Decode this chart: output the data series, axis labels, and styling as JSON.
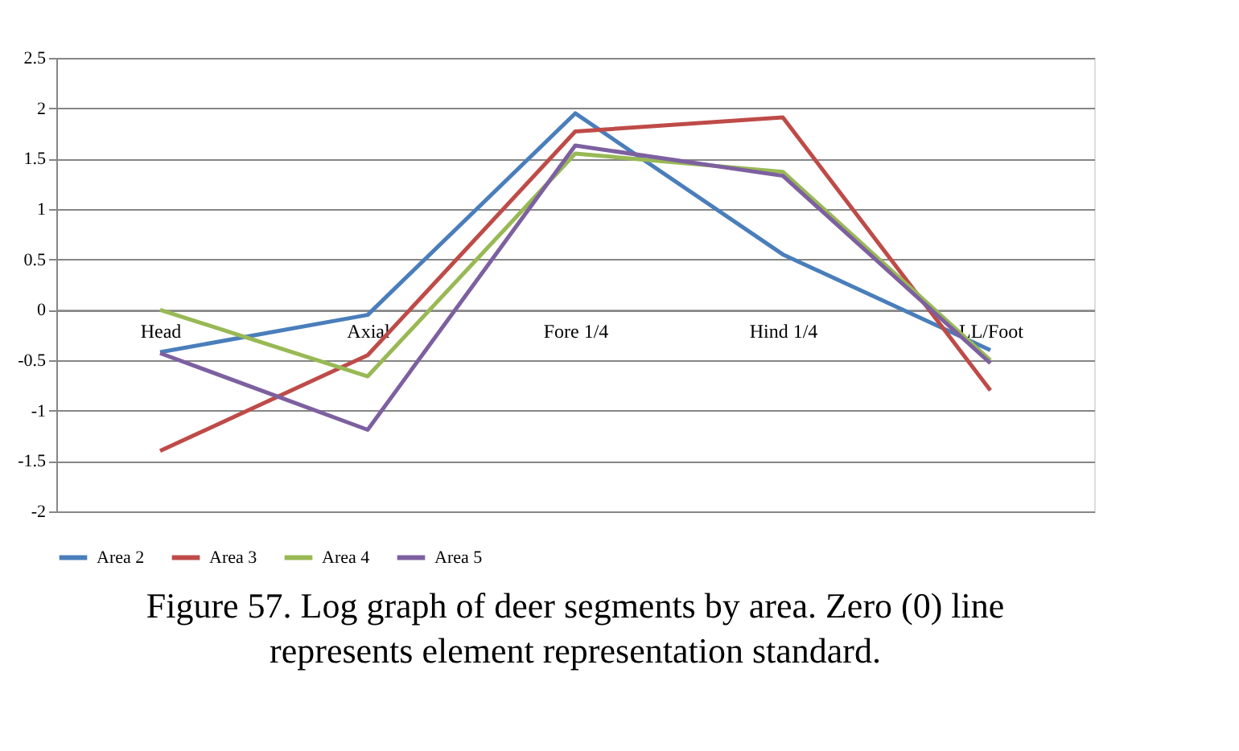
{
  "chart_data": {
    "type": "line",
    "categories": [
      "Head",
      "Axial",
      "Fore 1/4",
      "Hind 1/4",
      "LL/Foot"
    ],
    "series": [
      {
        "name": "Area 2",
        "color": "#4a7ebb",
        "values": [
          -0.42,
          -0.05,
          1.95,
          0.55,
          -0.4
        ]
      },
      {
        "name": "Area 3",
        "color": "#be4b48",
        "values": [
          -1.4,
          -0.45,
          1.77,
          1.91,
          -0.8
        ]
      },
      {
        "name": "Area 4",
        "color": "#98b954",
        "values": [
          0,
          -0.66,
          1.55,
          1.37,
          -0.5
        ]
      },
      {
        "name": "Area 5",
        "color": "#7d60a0",
        "values": [
          -0.43,
          -1.19,
          1.63,
          1.33,
          -0.53
        ]
      }
    ],
    "ylim": [
      -2,
      2.5
    ],
    "yticks": [
      -2,
      -1.5,
      -1,
      -0.5,
      0,
      0.5,
      1,
      1.5,
      2,
      2.5
    ],
    "grid": "y",
    "legend": "bottom",
    "marker": "none",
    "line_style": "solid",
    "annotations": [
      "Figure 57. Log graph of deer segments by area. Zero (0) line represents element representation standard."
    ]
  }
}
